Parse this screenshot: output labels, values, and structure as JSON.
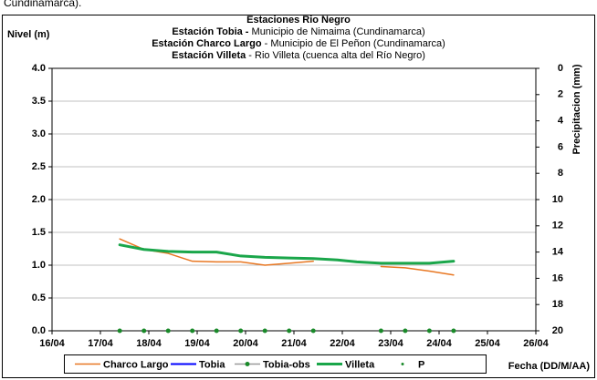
{
  "chart_data": {
    "type": "line",
    "header_text": "Cundinamarca).",
    "title": "Estaciones Rio Negro",
    "subtitle_lines": [
      {
        "bold": "Estación Tobia - ",
        "text": "Municipio de Nimaima (Cundinamarca)"
      },
      {
        "bold": "Estación Charco Largo",
        "text": " - Municipio de El Peñon (Cundinamarca)"
      },
      {
        "bold": "Estación Villeta",
        "text": " -  Rio Villeta (cuenca alta del Río Negro)"
      }
    ],
    "y_label": "Nivel (m)",
    "y2_label": "Precipitacion (mm)",
    "x_label": "Fecha (DD/M/AA)",
    "xlim": [
      16,
      26
    ],
    "xticks": [
      {
        "value": 16,
        "label": "16/04"
      },
      {
        "value": 17,
        "label": "17/04"
      },
      {
        "value": 18,
        "label": "18/04"
      },
      {
        "value": 19,
        "label": "19/04"
      },
      {
        "value": 20,
        "label": "20/04"
      },
      {
        "value": 21,
        "label": "21/04"
      },
      {
        "value": 22,
        "label": "22/04"
      },
      {
        "value": 23,
        "label": "23/04"
      },
      {
        "value": 24,
        "label": "24/04"
      },
      {
        "value": 25,
        "label": "25/04"
      },
      {
        "value": 26,
        "label": "26/04"
      }
    ],
    "ylim": [
      0,
      4
    ],
    "yticks": [
      {
        "value": 0,
        "label": "0.0"
      },
      {
        "value": 0.5,
        "label": "0.5"
      },
      {
        "value": 1,
        "label": "1.0"
      },
      {
        "value": 1.5,
        "label": "1.5"
      },
      {
        "value": 2,
        "label": "2.0"
      },
      {
        "value": 2.5,
        "label": "2.5"
      },
      {
        "value": 3,
        "label": "3.0"
      },
      {
        "value": 3.5,
        "label": "3.5"
      },
      {
        "value": 4,
        "label": "4.0"
      }
    ],
    "y2lim": [
      20,
      0
    ],
    "y2ticks": [
      0,
      2,
      4,
      6,
      8,
      10,
      12,
      14,
      16,
      18,
      20
    ],
    "series": [
      {
        "name": "Charco Largo",
        "color": "#e87722",
        "width": 1.5,
        "marker": false,
        "x": [
          17.4,
          17.9,
          18.4,
          18.9,
          19.4,
          19.9,
          20.4,
          20.9,
          21.4,
          21.9,
          22.3,
          22.8,
          23.3,
          23.8,
          24.3
        ],
        "values": [
          1.4,
          1.24,
          1.18,
          1.06,
          1.05,
          1.05,
          1.0,
          1.03,
          1.06,
          null,
          null,
          0.98,
          0.96,
          0.91,
          0.85
        ]
      },
      {
        "name": "Tobia",
        "color": "#0000ff",
        "width": 2,
        "marker": false,
        "x": [],
        "values": []
      },
      {
        "name": "Tobia-obs",
        "color": "#999999",
        "marker_color": "#1a8a2a",
        "width": 1.5,
        "marker": true,
        "x": [
          17.4,
          17.9,
          18.4,
          18.9,
          19.4,
          19.9,
          20.4,
          20.9,
          21.4,
          22.8,
          23.3,
          23.8,
          24.3
        ],
        "values": [
          0,
          0,
          0,
          0,
          0,
          0,
          0,
          0,
          0,
          0,
          0,
          0,
          0
        ],
        "line": false
      },
      {
        "name": "Villeta",
        "color": "#1aa64a",
        "width": 3,
        "marker": false,
        "x": [
          17.4,
          17.9,
          18.4,
          18.9,
          19.4,
          19.9,
          20.4,
          20.9,
          21.4,
          21.9,
          22.3,
          22.8,
          23.3,
          23.8,
          24.3
        ],
        "values": [
          1.31,
          1.24,
          1.21,
          1.2,
          1.2,
          1.14,
          1.12,
          1.11,
          1.1,
          1.08,
          1.05,
          1.03,
          1.03,
          1.03,
          1.06
        ]
      },
      {
        "name": "P",
        "color": "#1a8a2a",
        "width": 0,
        "marker": true,
        "dot_only": true,
        "axis": "y2",
        "x": [],
        "values": []
      }
    ]
  }
}
